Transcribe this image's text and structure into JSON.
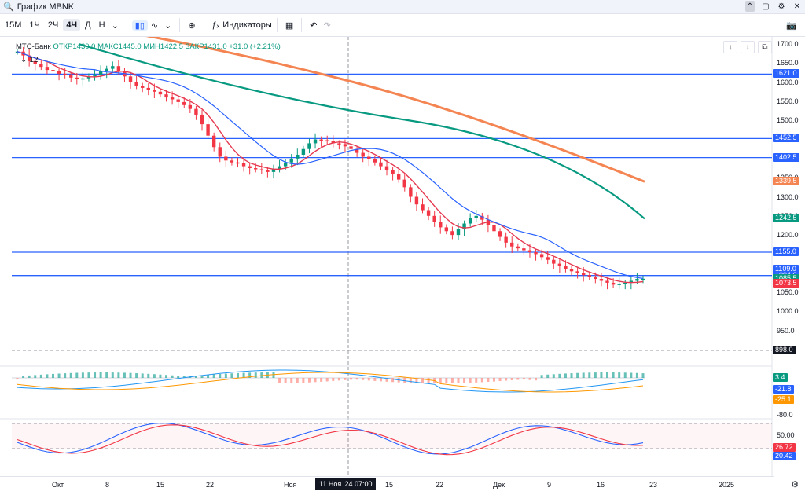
{
  "window": {
    "title": "График MBNK"
  },
  "toolbar": {
    "timeframes": [
      "15М",
      "1Ч",
      "2Ч",
      "4Ч",
      "Д",
      "Н"
    ],
    "selected": "4Ч",
    "indicators_label": "Индикаторы"
  },
  "legend": {
    "name": "МТС-Банк",
    "ohlc": "ОТКР1430.0  МАКС1445.0  МИН1422.5  ЗАКР1431.0  +31.0 (+2.21%)",
    "ma_label": "12"
  },
  "price_axis": {
    "labels": [
      "1700.0",
      "1650.0",
      "1600.0",
      "1550.0",
      "1500.0",
      "1450.0",
      "1400.0",
      "1350.0",
      "1300.0",
      "1250.0",
      "1200.0",
      "1150.0",
      "1100.0",
      "1050.0",
      "1000.0",
      "950.0",
      "900.0"
    ]
  },
  "price_tags": [
    {
      "text": "1621.0",
      "color": "#2962ff"
    },
    {
      "text": "1452.5",
      "color": "#2962ff"
    },
    {
      "text": "1402.5",
      "color": "#2962ff"
    },
    {
      "text": "1339.5",
      "color": "#f48552"
    },
    {
      "text": "1242.5",
      "color": "#089981"
    },
    {
      "text": "1155.0",
      "color": "#2962ff"
    },
    {
      "text": "1109.0",
      "color": "#2962ff"
    },
    {
      "text": "1094.0",
      "color": "#2962ff"
    },
    {
      "text": "1085.5",
      "color": "#089981"
    },
    {
      "text": "1073.5",
      "color": "#f23645"
    },
    {
      "text": "898.0",
      "color": "#131722"
    }
  ],
  "macd": {
    "labels": [
      "3.4",
      "-21.8",
      "-25.1",
      "-80.0"
    ]
  },
  "stoch": {
    "labels": [
      "50.00",
      "26.72",
      "20.42"
    ]
  },
  "time_axis": {
    "labels": [
      "Окт",
      "8",
      "15",
      "22",
      "Ноя",
      "15",
      "22",
      "Дек",
      "9",
      "16",
      "23",
      "2025"
    ],
    "cursor": "11 Ноя '24   07:00"
  },
  "chart_data": {
    "type": "candlestick",
    "symbol": "MBNK",
    "ylim": [
      890,
      1720
    ],
    "horizontal_lines": [
      1621.0,
      1452.5,
      1402.5,
      1155.0,
      1094.0
    ],
    "ema_slow_end": 1339.5,
    "ema_mid_end": 1242.5,
    "last_close": 1085.5
  }
}
